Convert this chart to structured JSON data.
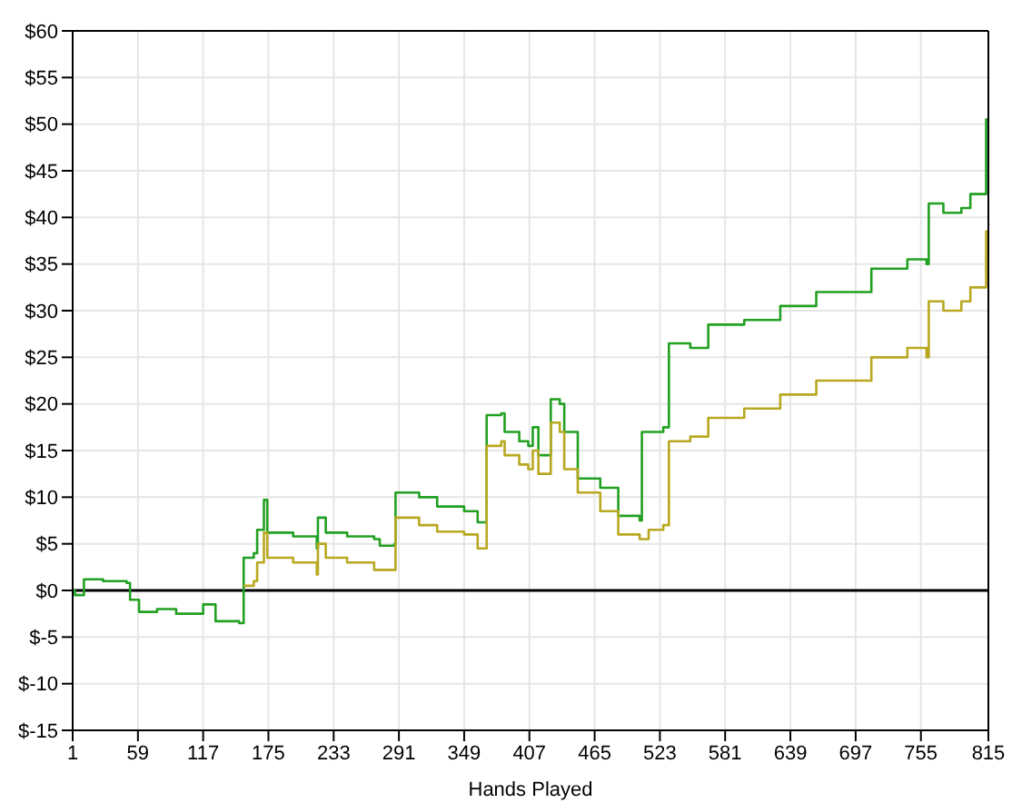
{
  "chart_data": {
    "type": "step",
    "xlabel": "Hands Played",
    "xlim": [
      1,
      815
    ],
    "xticks": [
      1,
      59,
      117,
      175,
      233,
      291,
      349,
      407,
      465,
      523,
      581,
      639,
      697,
      755,
      815
    ],
    "ylim": [
      -15,
      60
    ],
    "yticks": [
      {
        "value": -15,
        "label": "$-15"
      },
      {
        "value": -10,
        "label": "$-10"
      },
      {
        "value": -5,
        "label": "$-5"
      },
      {
        "value": 0,
        "label": "$0"
      },
      {
        "value": 5,
        "label": "$5"
      },
      {
        "value": 10,
        "label": "$10"
      },
      {
        "value": 15,
        "label": "$15"
      },
      {
        "value": 20,
        "label": "$20"
      },
      {
        "value": 25,
        "label": "$25"
      },
      {
        "value": 30,
        "label": "$30"
      },
      {
        "value": 35,
        "label": "$35"
      },
      {
        "value": 40,
        "label": "$40"
      },
      {
        "value": 45,
        "label": "$45"
      },
      {
        "value": 50,
        "label": "$50"
      },
      {
        "value": 55,
        "label": "$55"
      },
      {
        "value": 60,
        "label": "$60"
      }
    ],
    "grid": true,
    "legend": false,
    "marker": "none",
    "line_style": "solid",
    "ref_lines": [
      {
        "axis": "y",
        "value": 0,
        "color": "#000000"
      }
    ],
    "series": [
      {
        "color": "#22a022",
        "x": [
          1,
          3,
          11,
          28,
          49,
          52,
          60,
          76,
          93,
          117,
          128,
          149,
          153,
          162,
          165,
          171,
          174,
          197,
          218,
          219,
          226,
          245,
          269,
          274,
          287,
          288,
          309,
          325,
          349,
          361,
          367,
          369,
          382,
          385,
          398,
          406,
          410,
          415,
          426,
          434,
          438,
          450,
          470,
          486,
          505,
          507,
          526,
          531,
          550,
          566,
          598,
          630,
          662,
          711,
          743,
          760,
          762,
          775,
          791,
          799,
          812,
          813,
          815
        ],
        "values": [
          0,
          -0.5,
          1.2,
          1,
          0.8,
          -1,
          -2.3,
          -2,
          -2.5,
          -1.5,
          -3.3,
          -3.5,
          3.5,
          4,
          6.5,
          9.7,
          6.2,
          5.8,
          4.5,
          7.8,
          6.2,
          5.8,
          5.5,
          4.8,
          5,
          10.5,
          10,
          9,
          8.5,
          7.3,
          7.3,
          18.8,
          19,
          17,
          16,
          15.5,
          17.5,
          14.5,
          20.5,
          20,
          17,
          12,
          11,
          8,
          7.5,
          17,
          17.5,
          26.5,
          26,
          28.5,
          29,
          30.5,
          32,
          34.5,
          35.5,
          35,
          41.5,
          40.5,
          41,
          42.5,
          42.5,
          50.5,
          50.5
        ]
      },
      {
        "color": "#b8a820",
        "x": [
          153,
          162,
          165,
          171,
          174,
          197,
          218,
          219,
          226,
          245,
          269,
          274,
          287,
          288,
          309,
          325,
          349,
          361,
          367,
          369,
          382,
          385,
          398,
          406,
          410,
          415,
          426,
          434,
          438,
          450,
          470,
          486,
          505,
          513,
          526,
          531,
          550,
          566,
          598,
          630,
          662,
          711,
          743,
          760,
          762,
          775,
          791,
          799,
          812,
          813,
          815
        ],
        "values": [
          0.5,
          1,
          3,
          6.2,
          3.5,
          3,
          1.7,
          5,
          3.5,
          3,
          2.2,
          2.2,
          2.2,
          7.8,
          7,
          6.3,
          6,
          4.5,
          4.5,
          15.5,
          16,
          14.5,
          13.5,
          13,
          15,
          12.5,
          18,
          17,
          13,
          10.5,
          8.5,
          6,
          5.5,
          6.5,
          7,
          16,
          16.5,
          18.5,
          19.5,
          21,
          22.5,
          25,
          26,
          25,
          31,
          30,
          31,
          32.5,
          32.5,
          38.5,
          38.5
        ]
      }
    ]
  }
}
